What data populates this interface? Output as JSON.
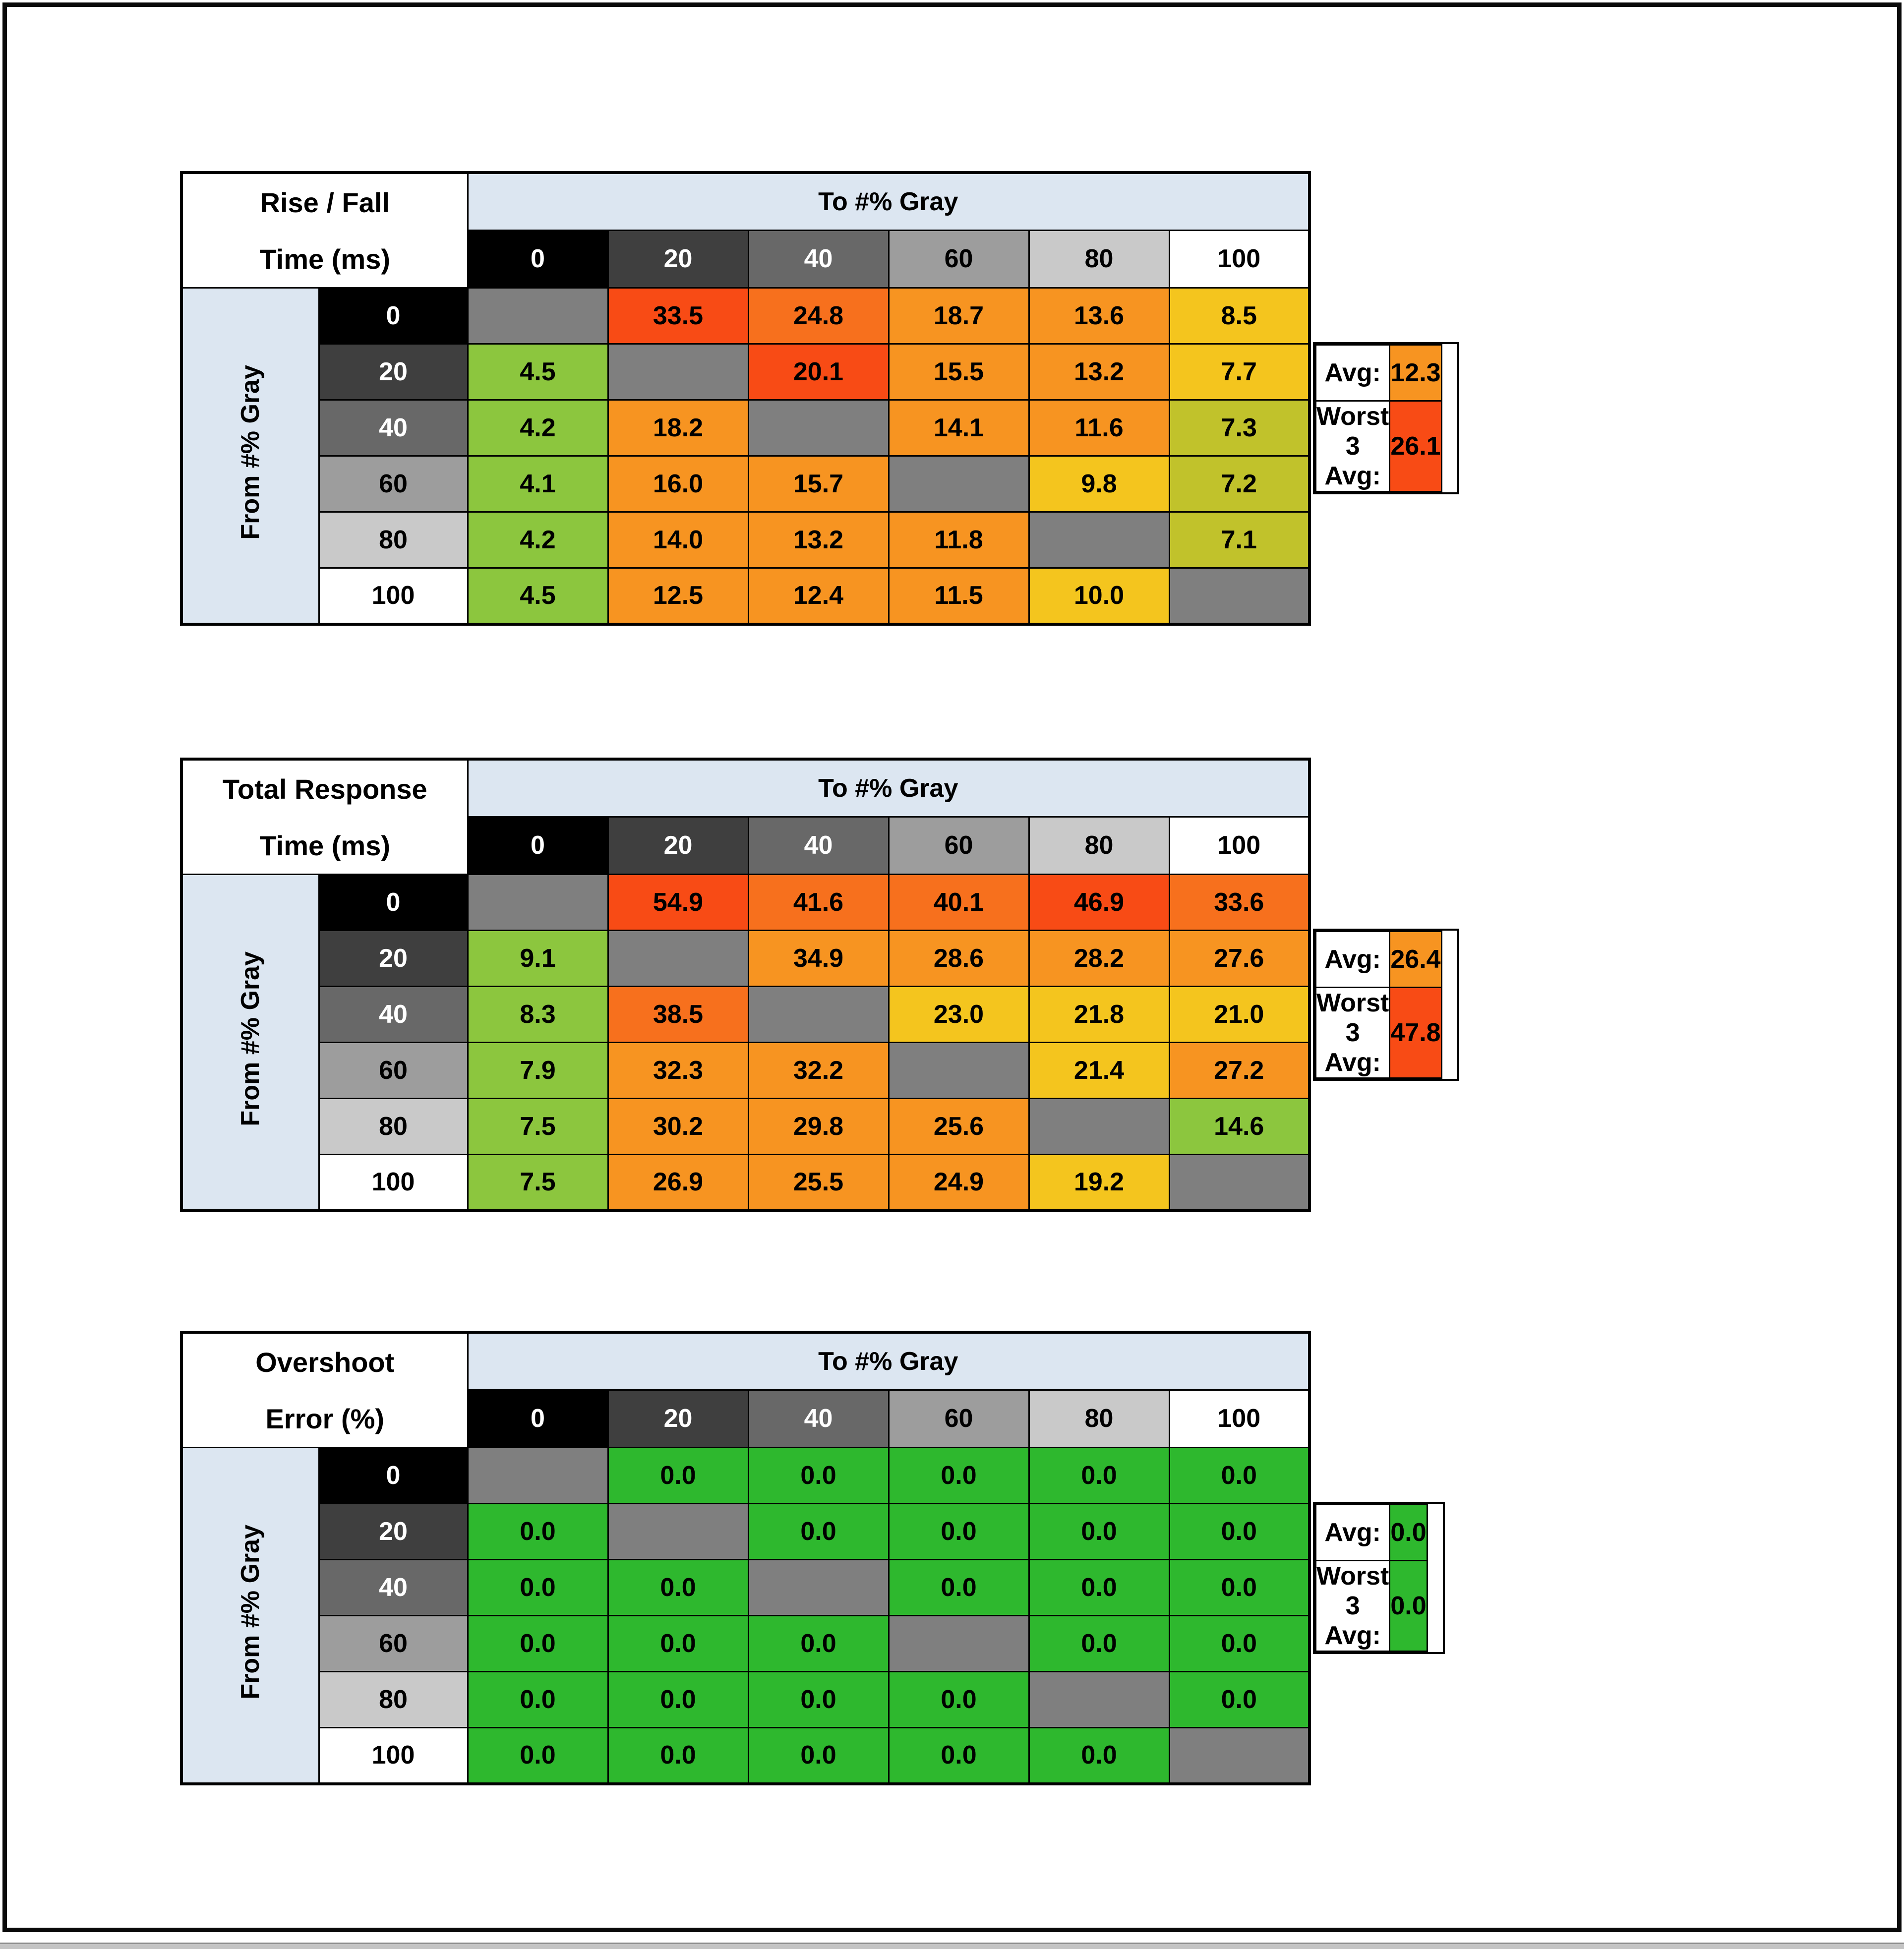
{
  "report": {
    "summary_avg_label": "Avg:",
    "summary_worst_label": "Worst 3 Avg:"
  },
  "palette": {
    "diag": "#7f7f7f",
    "green": "#2eb82e",
    "yellowgreen": "#8cc63e",
    "olive": "#c1c22b",
    "yellow": "#f4c51e",
    "orange": "#f79421",
    "orangered": "#f7701d",
    "red": "#f84b15",
    "header_blue": "#dce6f1"
  },
  "gray_levels": {
    "0": {
      "bg": "#000000",
      "fg": "#ffffff"
    },
    "20": {
      "bg": "#3f3f3f",
      "fg": "#ffffff"
    },
    "40": {
      "bg": "#686868",
      "fg": "#ffffff"
    },
    "60": {
      "bg": "#9d9d9d",
      "fg": "#000000"
    },
    "80": {
      "bg": "#c9c9c9",
      "fg": "#000000"
    },
    "100": {
      "bg": "#ffffff",
      "fg": "#000000"
    }
  },
  "chart_data": [
    {
      "type": "heatmap",
      "id": "rise-fall-time",
      "title_lines": [
        "Rise / Fall",
        "Time (ms)"
      ],
      "col_group_label": "To #% Gray",
      "row_group_label": "From #% Gray",
      "columns": [
        "0",
        "20",
        "40",
        "60",
        "80",
        "100"
      ],
      "rows": [
        "0",
        "20",
        "40",
        "60",
        "80",
        "100"
      ],
      "values": [
        [
          null,
          "33.5",
          "24.8",
          "18.7",
          "13.6",
          "8.5"
        ],
        [
          "4.5",
          null,
          "20.1",
          "15.5",
          "13.2",
          "7.7"
        ],
        [
          "4.2",
          "18.2",
          null,
          "14.1",
          "11.6",
          "7.3"
        ],
        [
          "4.1",
          "16.0",
          "15.7",
          null,
          "9.8",
          "7.2"
        ],
        [
          "4.2",
          "14.0",
          "13.2",
          "11.8",
          null,
          "7.1"
        ],
        [
          "4.5",
          "12.5",
          "12.4",
          "11.5",
          "10.0",
          null
        ]
      ],
      "cell_colors": [
        [
          "diag",
          "red",
          "orangered",
          "orange",
          "orange",
          "yellow"
        ],
        [
          "yellowgreen",
          "diag",
          "red",
          "orange",
          "orange",
          "yellow"
        ],
        [
          "yellowgreen",
          "orange",
          "diag",
          "orange",
          "orange",
          "olive"
        ],
        [
          "yellowgreen",
          "orange",
          "orange",
          "diag",
          "yellow",
          "olive"
        ],
        [
          "yellowgreen",
          "orange",
          "orange",
          "orange",
          "diag",
          "olive"
        ],
        [
          "yellowgreen",
          "orange",
          "orange",
          "orange",
          "yellow",
          "diag"
        ]
      ],
      "summary": {
        "avg_value": "12.3",
        "avg_color": "orange",
        "worst_value": "26.1",
        "worst_color": "red"
      }
    },
    {
      "type": "heatmap",
      "id": "total-response-time",
      "title_lines": [
        "Total Response",
        "Time (ms)"
      ],
      "col_group_label": "To #% Gray",
      "row_group_label": "From #% Gray",
      "columns": [
        "0",
        "20",
        "40",
        "60",
        "80",
        "100"
      ],
      "rows": [
        "0",
        "20",
        "40",
        "60",
        "80",
        "100"
      ],
      "values": [
        [
          null,
          "54.9",
          "41.6",
          "40.1",
          "46.9",
          "33.6"
        ],
        [
          "9.1",
          null,
          "34.9",
          "28.6",
          "28.2",
          "27.6"
        ],
        [
          "8.3",
          "38.5",
          null,
          "23.0",
          "21.8",
          "21.0"
        ],
        [
          "7.9",
          "32.3",
          "32.2",
          null,
          "21.4",
          "27.2"
        ],
        [
          "7.5",
          "30.2",
          "29.8",
          "25.6",
          null,
          "14.6"
        ],
        [
          "7.5",
          "26.9",
          "25.5",
          "24.9",
          "19.2",
          null
        ]
      ],
      "cell_colors": [
        [
          "diag",
          "red",
          "orangered",
          "orangered",
          "red",
          "orangered"
        ],
        [
          "yellowgreen",
          "diag",
          "orange",
          "orange",
          "orange",
          "orange"
        ],
        [
          "yellowgreen",
          "orangered",
          "diag",
          "yellow",
          "yellow",
          "yellow"
        ],
        [
          "yellowgreen",
          "orange",
          "orange",
          "diag",
          "yellow",
          "orange"
        ],
        [
          "yellowgreen",
          "orange",
          "orange",
          "orange",
          "diag",
          "yellowgreen"
        ],
        [
          "yellowgreen",
          "orange",
          "orange",
          "orange",
          "yellow",
          "diag"
        ]
      ],
      "summary": {
        "avg_value": "26.4",
        "avg_color": "orange",
        "worst_value": "47.8",
        "worst_color": "red"
      }
    },
    {
      "type": "heatmap",
      "id": "overshoot-error",
      "title_lines": [
        "Overshoot",
        "Error (%)"
      ],
      "col_group_label": "To #% Gray",
      "row_group_label": "From #% Gray",
      "columns": [
        "0",
        "20",
        "40",
        "60",
        "80",
        "100"
      ],
      "rows": [
        "0",
        "20",
        "40",
        "60",
        "80",
        "100"
      ],
      "values": [
        [
          null,
          "0.0",
          "0.0",
          "0.0",
          "0.0",
          "0.0"
        ],
        [
          "0.0",
          null,
          "0.0",
          "0.0",
          "0.0",
          "0.0"
        ],
        [
          "0.0",
          "0.0",
          null,
          "0.0",
          "0.0",
          "0.0"
        ],
        [
          "0.0",
          "0.0",
          "0.0",
          null,
          "0.0",
          "0.0"
        ],
        [
          "0.0",
          "0.0",
          "0.0",
          "0.0",
          null,
          "0.0"
        ],
        [
          "0.0",
          "0.0",
          "0.0",
          "0.0",
          "0.0",
          null
        ]
      ],
      "cell_colors": [
        [
          "diag",
          "green",
          "green",
          "green",
          "green",
          "green"
        ],
        [
          "green",
          "diag",
          "green",
          "green",
          "green",
          "green"
        ],
        [
          "green",
          "green",
          "diag",
          "green",
          "green",
          "green"
        ],
        [
          "green",
          "green",
          "green",
          "diag",
          "green",
          "green"
        ],
        [
          "green",
          "green",
          "green",
          "green",
          "diag",
          "green"
        ],
        [
          "green",
          "green",
          "green",
          "green",
          "green",
          "diag"
        ]
      ],
      "summary": {
        "avg_value": "0.0",
        "avg_color": "green",
        "worst_value": "0.0",
        "worst_color": "green"
      }
    }
  ]
}
